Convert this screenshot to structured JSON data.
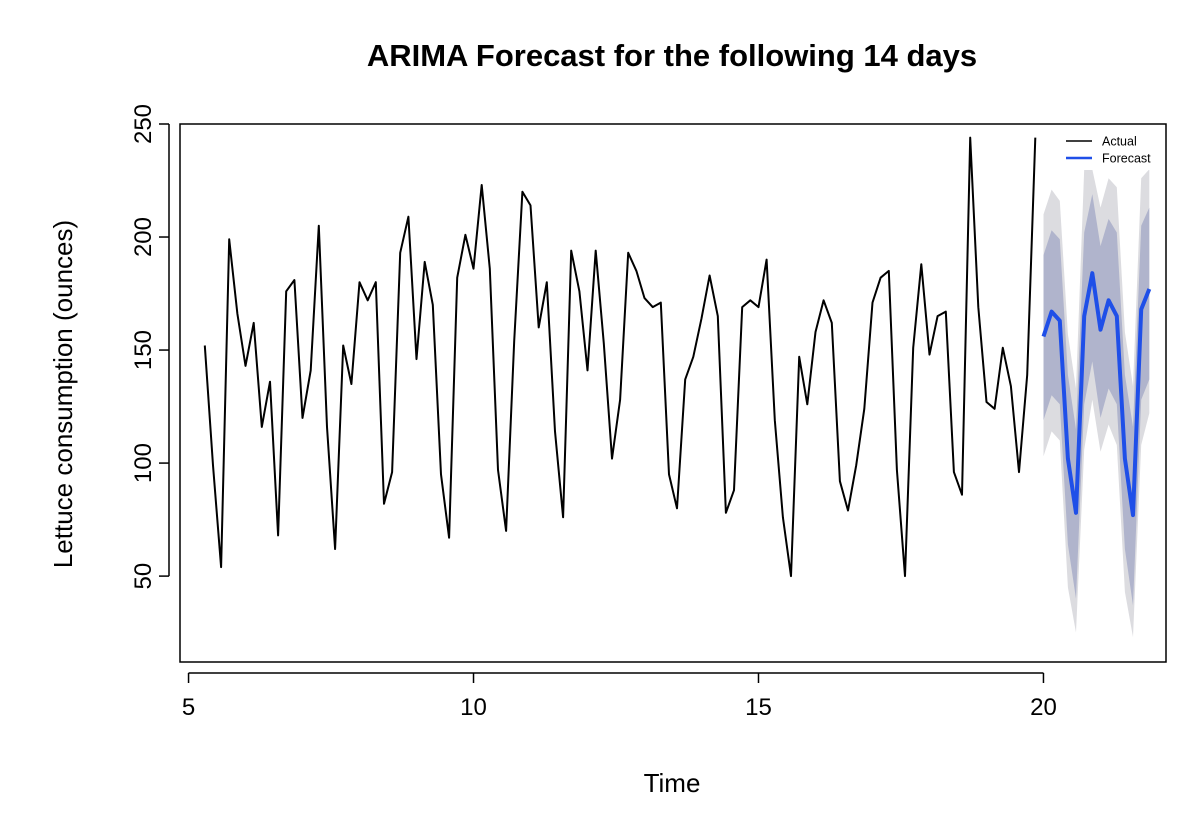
{
  "chart_data": {
    "type": "line",
    "title": "ARIMA Forecast for the following 14 days",
    "xlabel": "Time",
    "ylabel": "Lettuce consumption (ounces)",
    "xlim": [
      4.85,
      22.15
    ],
    "ylim": [
      12,
      250
    ],
    "xticks": [
      5,
      10,
      15,
      20
    ],
    "yticks": [
      50,
      100,
      150,
      200,
      250
    ],
    "legend": {
      "position": "top-right",
      "entries": [
        {
          "label": "Actual",
          "color": "#000000"
        },
        {
          "label": "Forecast",
          "color": "#1f4fe8"
        }
      ]
    },
    "colors": {
      "actual": "#000000",
      "forecast": "#1f4fe8",
      "pi80": "#b0b4cc",
      "pi95": "#dcdce0"
    },
    "series": [
      {
        "name": "Actual",
        "x": [
          5.286,
          5.429,
          5.571,
          5.714,
          5.857,
          6.0,
          6.143,
          6.286,
          6.429,
          6.571,
          6.714,
          6.857,
          7.0,
          7.143,
          7.286,
          7.429,
          7.571,
          7.714,
          7.857,
          8.0,
          8.143,
          8.286,
          8.429,
          8.571,
          8.714,
          8.857,
          9.0,
          9.143,
          9.286,
          9.429,
          9.571,
          9.714,
          9.857,
          10.0,
          10.143,
          10.286,
          10.429,
          10.571,
          10.714,
          10.857,
          11.0,
          11.143,
          11.286,
          11.429,
          11.571,
          11.714,
          11.857,
          12.0,
          12.143,
          12.286,
          12.429,
          12.571,
          12.714,
          12.857,
          13.0,
          13.143,
          13.286,
          13.429,
          13.571,
          13.714,
          13.857,
          14.0,
          14.143,
          14.286,
          14.429,
          14.571,
          14.714,
          14.857,
          15.0,
          15.143,
          15.286,
          15.429,
          15.571,
          15.714,
          15.857,
          16.0,
          16.143,
          16.286,
          16.429,
          16.571,
          16.714,
          16.857,
          17.0,
          17.143,
          17.286,
          17.429,
          17.571,
          17.714,
          17.857,
          18.0,
          18.143,
          18.286,
          18.429,
          18.571,
          18.714,
          18.857,
          19.0,
          19.143,
          19.286,
          19.429,
          19.571,
          19.714,
          19.857
        ],
        "values": [
          152,
          99,
          54,
          199,
          166,
          143,
          162,
          116,
          136,
          68,
          176,
          181,
          120,
          141,
          205,
          116,
          62,
          152,
          135,
          180,
          172,
          180,
          82,
          96,
          193,
          209,
          146,
          189,
          170,
          95,
          67,
          182,
          201,
          186,
          223,
          186,
          97,
          70,
          154,
          220,
          214,
          160,
          180,
          114,
          76,
          194,
          176,
          141,
          194,
          153,
          102,
          128,
          193,
          185,
          173,
          169,
          171,
          95,
          80,
          137,
          147,
          164,
          183,
          165,
          78,
          88,
          169,
          172,
          169,
          190,
          119,
          76,
          50,
          147,
          126,
          158,
          172,
          162,
          92,
          79,
          99,
          124,
          171,
          182,
          185,
          97,
          50,
          151,
          188,
          148,
          165,
          167,
          96,
          86,
          244,
          169,
          127,
          124,
          151,
          134,
          96,
          139,
          244
        ]
      },
      {
        "name": "Forecast",
        "x": [
          20.0,
          20.143,
          20.286,
          20.429,
          20.571,
          20.714,
          20.857,
          21.0,
          21.143,
          21.286,
          21.429,
          21.571,
          21.714,
          21.857
        ],
        "values": [
          156,
          167,
          163,
          102,
          78,
          165,
          184,
          159,
          172,
          165,
          102,
          77,
          168,
          177
        ],
        "lo80": [
          119,
          130,
          126,
          64,
          40,
          126,
          145,
          120,
          133,
          126,
          62,
          37,
          128,
          137
        ],
        "hi80": [
          192,
          203,
          199,
          139,
          115,
          202,
          219,
          196,
          208,
          202,
          139,
          116,
          205,
          213
        ],
        "lo95": [
          103,
          114,
          110,
          45,
          25,
          106,
          128,
          105,
          117,
          108,
          43,
          23,
          108,
          122
        ],
        "hi95": [
          210,
          221,
          216,
          157,
          133,
          230,
          230,
          213,
          226,
          222,
          158,
          134,
          226,
          230
        ]
      }
    ]
  }
}
